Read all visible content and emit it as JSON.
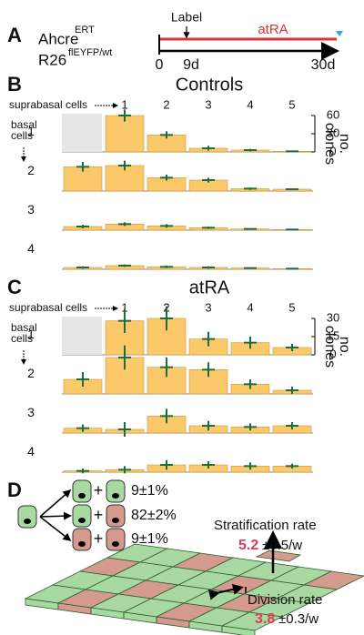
{
  "panel_a": {
    "label": "A",
    "line1": "Ahcre",
    "sup1": "ERT",
    "line2": "R26",
    "sup2": "flEYFP/wt",
    "event": "Label",
    "treatment": "atRA",
    "time_ticks": [
      "0",
      "9d",
      "30d"
    ]
  },
  "chart_data": [
    {
      "type": "bar-grid",
      "label": "B",
      "title": "Controls",
      "col_axis_label": "suprabasal cells",
      "row_axis_label": [
        "basal",
        "cells"
      ],
      "categories": [
        null,
        1,
        2,
        3,
        4,
        5
      ],
      "rows": [
        1,
        2,
        3,
        4
      ],
      "y_label": [
        "no.",
        "clones"
      ],
      "ylim": [
        0,
        60
      ],
      "yticks": [
        0,
        30,
        60
      ],
      "color": "#fcc96a",
      "error_color": "#1f6b3a",
      "values": [
        [
          null,
          60,
          28,
          6,
          3,
          1
        ],
        [
          40,
          42,
          22,
          18,
          4,
          3
        ],
        [
          6,
          10,
          7,
          4,
          2,
          1
        ],
        [
          3,
          6,
          4,
          3,
          2,
          1
        ]
      ],
      "errors": [
        [
          null,
          10,
          6,
          4,
          2,
          1
        ],
        [
          8,
          8,
          5,
          4,
          2,
          1
        ],
        [
          3,
          3,
          3,
          2,
          1,
          1
        ],
        [
          2,
          2,
          2,
          2,
          1,
          1
        ]
      ]
    },
    {
      "type": "bar-grid",
      "label": "C",
      "title": "atRA",
      "col_axis_label": "suprabasal cells",
      "row_axis_label": [
        "basal",
        "cells"
      ],
      "categories": [
        null,
        1,
        2,
        3,
        4,
        5
      ],
      "rows": [
        1,
        2,
        3,
        4
      ],
      "y_label": [
        "no.",
        "clones"
      ],
      "ylim": [
        0,
        30
      ],
      "yticks": [
        0,
        15,
        30
      ],
      "color": "#fcc96a",
      "error_color": "#1f6b3a",
      "values": [
        [
          null,
          28,
          30,
          13,
          10,
          6
        ],
        [
          12,
          30,
          22,
          20,
          8,
          3
        ],
        [
          4,
          3,
          14,
          6,
          5,
          6
        ],
        [
          1,
          2,
          6,
          6,
          5,
          5
        ]
      ],
      "errors": [
        [
          null,
          10,
          10,
          6,
          5,
          3
        ],
        [
          6,
          10,
          8,
          6,
          4,
          3
        ],
        [
          3,
          6,
          6,
          4,
          3,
          3
        ],
        [
          2,
          3,
          4,
          3,
          3,
          2
        ]
      ]
    }
  ],
  "panel_d": {
    "label": "D",
    "plus": "+",
    "fates": [
      "9±1%",
      "82±2%",
      "9±1%"
    ],
    "stratification_label": "Stratification rate",
    "stratification_value": "5.2",
    "stratification_error": "±0.5/w",
    "division_label": "Division rate",
    "division_value": "3.8",
    "division_error": "±0.3/w"
  }
}
